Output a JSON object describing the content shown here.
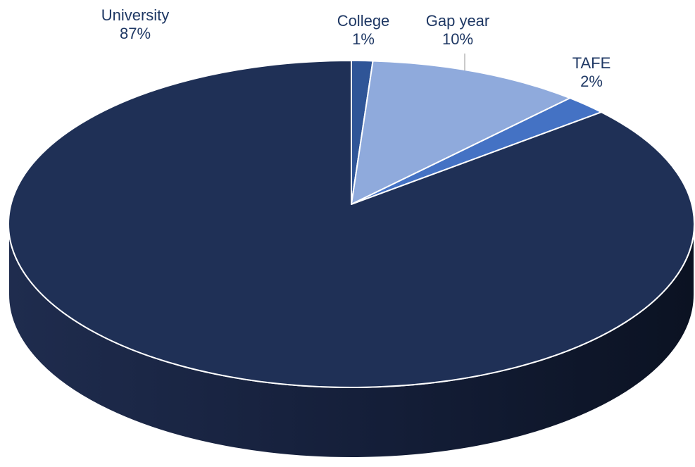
{
  "chart_data": {
    "type": "pie",
    "style": "3d-tilted",
    "title": "",
    "slices": [
      {
        "label": "College",
        "value": 1,
        "value_label": "1%",
        "color": "#2f5597"
      },
      {
        "label": "Gap year",
        "value": 10,
        "value_label": "10%",
        "color": "#8faadc"
      },
      {
        "label": "TAFE",
        "value": 2,
        "value_label": "2%",
        "color": "#4472c4"
      },
      {
        "label": "University",
        "value": 87,
        "value_label": "87%",
        "color": "#1f3056"
      }
    ],
    "legend": "none",
    "label_color": "#1f3864",
    "side_color": "#141e36"
  }
}
